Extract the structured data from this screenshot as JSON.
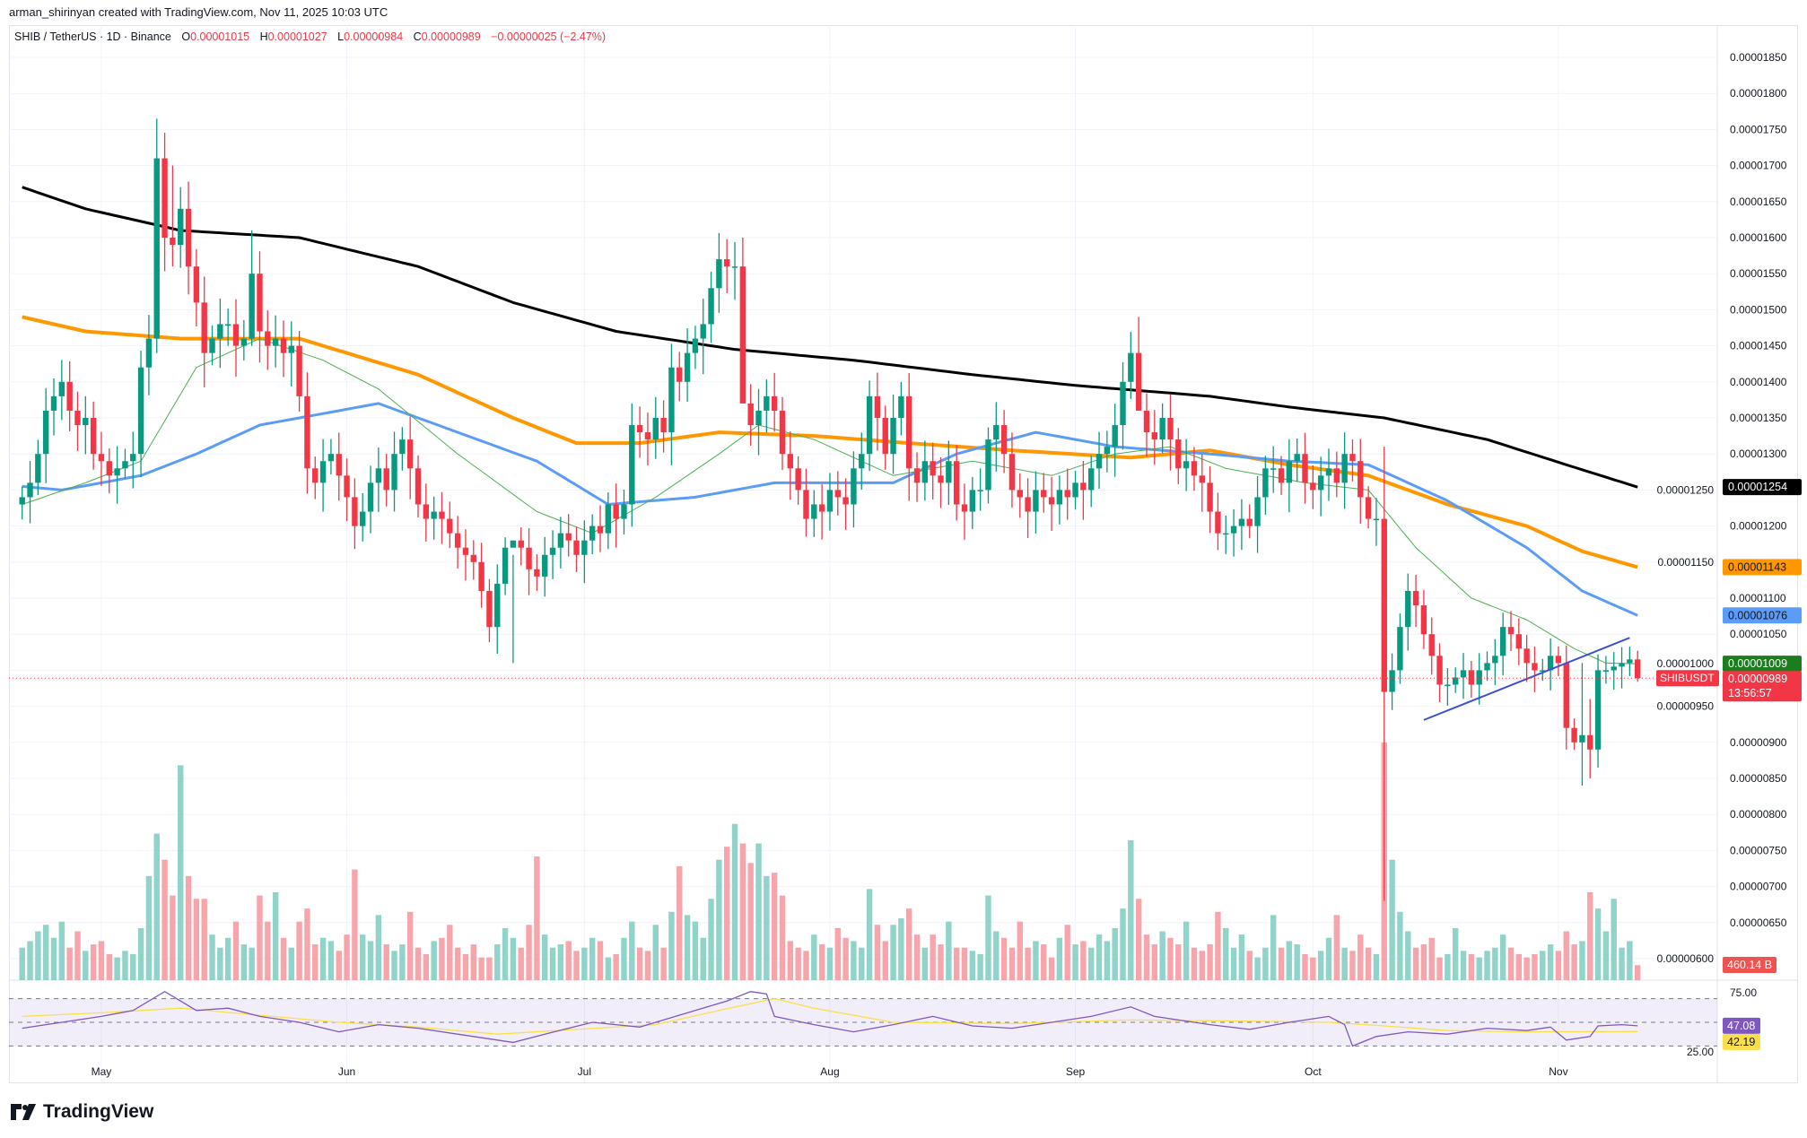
{
  "credit": "arman_shirinyan created with TradingView.com, Nov 11, 2025 10:03 UTC",
  "legend": {
    "symbol": "SHIB / TetherUS · 1D · Binance",
    "open_key": "O",
    "open": "0.00001015",
    "high_key": "H",
    "high": "0.00001027",
    "low_key": "L",
    "low": "0.00000984",
    "close_key": "C",
    "close": "0.00000989",
    "change": "−0.00000025 (−2.47%)"
  },
  "logo_text": "TradingView",
  "colors": {
    "up": "#089981",
    "down": "#f23645",
    "vol_up": "#8fd3c9",
    "vol_down": "#f7a5aa",
    "ma200": "#000000",
    "ma100": "#ff9800",
    "ma50": "#5b9cf6",
    "ma20": "#4caf50",
    "trendline": "#3b4fd1",
    "rsi": "#7e57c2",
    "rsi_ma": "#f9e04b"
  },
  "price_axis": {
    "unit": "1e-8",
    "labels": [
      "0.00001850",
      "0.00001800",
      "0.00001750",
      "0.00001700",
      "0.00001650",
      "0.00001600",
      "0.00001550",
      "0.00001500",
      "0.00001450",
      "0.00001400",
      "0.00001350",
      "0.00001300",
      "0.00001250",
      "0.00001200",
      "0.00001150",
      "0.00001100",
      "0.00001050",
      "0.00001000",
      "0.00000950",
      "0.00000900",
      "0.00000850",
      "0.00000800",
      "0.00000750",
      "0.00000700",
      "0.00000650",
      "0.00000600"
    ],
    "badges": [
      {
        "name": "ma200-badge",
        "text": "0.00001254",
        "value": 1254,
        "bg": "#000000",
        "fg": "#ffffff"
      },
      {
        "name": "ma100-badge",
        "text": "0.00001143",
        "value": 1143,
        "bg": "#ff9800",
        "fg": "#131722"
      },
      {
        "name": "ma50-badge",
        "text": "0.00001076",
        "value": 1076,
        "bg": "#5b9cf6",
        "fg": "#131722"
      },
      {
        "name": "ma20-badge",
        "text": "0.00001009",
        "value": 1009,
        "bg": "#1b7d1e",
        "fg": "#ffffff"
      }
    ],
    "last_price": {
      "symbol_tag": "SHIBUSDT",
      "text": "0.00000989",
      "value": 989,
      "countdown": "13:56:57"
    }
  },
  "volume_badge": "460.14 B",
  "rsi": {
    "labels": [
      "75.00",
      "25.00"
    ],
    "value_badge": "47.08",
    "ma_badge": "42.19",
    "line": [
      [
        0,
        45
      ],
      [
        5,
        50
      ],
      [
        10,
        55
      ],
      [
        14,
        60
      ],
      [
        18,
        76
      ],
      [
        20,
        68
      ],
      [
        22,
        60
      ],
      [
        26,
        62
      ],
      [
        30,
        55
      ],
      [
        35,
        50
      ],
      [
        40,
        42
      ],
      [
        45,
        48
      ],
      [
        50,
        45
      ],
      [
        55,
        40
      ],
      [
        62,
        33
      ],
      [
        66,
        40
      ],
      [
        72,
        50
      ],
      [
        78,
        46
      ],
      [
        85,
        60
      ],
      [
        89,
        68
      ],
      [
        92,
        76
      ],
      [
        94,
        74
      ],
      [
        95,
        55
      ],
      [
        100,
        48
      ],
      [
        105,
        42
      ],
      [
        110,
        48
      ],
      [
        115,
        55
      ],
      [
        120,
        47
      ],
      [
        125,
        45
      ],
      [
        130,
        50
      ],
      [
        135,
        55
      ],
      [
        140,
        63
      ],
      [
        143,
        55
      ],
      [
        150,
        48
      ],
      [
        155,
        44
      ],
      [
        160,
        50
      ],
      [
        165,
        55
      ],
      [
        167,
        48
      ],
      [
        168,
        30
      ],
      [
        171,
        38
      ],
      [
        175,
        42
      ],
      [
        180,
        40
      ],
      [
        185,
        45
      ],
      [
        190,
        43
      ],
      [
        193,
        46
      ],
      [
        195,
        35
      ],
      [
        198,
        38
      ],
      [
        199,
        47
      ],
      [
        202,
        48
      ],
      [
        204,
        47.08
      ]
    ],
    "ma": [
      [
        0,
        55
      ],
      [
        10,
        58
      ],
      [
        20,
        62
      ],
      [
        30,
        56
      ],
      [
        40,
        50
      ],
      [
        50,
        46
      ],
      [
        60,
        40
      ],
      [
        70,
        44
      ],
      [
        80,
        48
      ],
      [
        88,
        60
      ],
      [
        95,
        70
      ],
      [
        100,
        62
      ],
      [
        110,
        50
      ],
      [
        125,
        49
      ],
      [
        140,
        52
      ],
      [
        155,
        51
      ],
      [
        165,
        50
      ],
      [
        172,
        47
      ],
      [
        180,
        43
      ],
      [
        190,
        42
      ],
      [
        204,
        42.19
      ]
    ]
  },
  "chart_data": {
    "type": "candlestick",
    "title": "SHIB / TetherUS · 1D · Binance",
    "price_unit": "1e-8 USDT",
    "month_ticks": [
      {
        "label": "May",
        "index": 10
      },
      {
        "label": "Jun",
        "index": 41
      },
      {
        "label": "Jul",
        "index": 71
      },
      {
        "label": "Aug",
        "index": 102
      },
      {
        "label": "Sep",
        "index": 133
      },
      {
        "label": "Oct",
        "index": 163
      },
      {
        "label": "Nov",
        "index": 194
      }
    ],
    "ylim": [
      560,
      1870
    ],
    "first_open": 1230,
    "closes": [
      1240,
      1260,
      1300,
      1360,
      1380,
      1400,
      1360,
      1340,
      1350,
      1300,
      1290,
      1270,
      1280,
      1290,
      1300,
      1420,
      1460,
      1710,
      1600,
      1590,
      1640,
      1560,
      1510,
      1440,
      1460,
      1480,
      1480,
      1450,
      1460,
      1550,
      1470,
      1450,
      1460,
      1440,
      1450,
      1380,
      1280,
      1260,
      1290,
      1300,
      1270,
      1240,
      1200,
      1220,
      1260,
      1280,
      1250,
      1300,
      1320,
      1280,
      1230,
      1210,
      1220,
      1210,
      1190,
      1170,
      1160,
      1150,
      1110,
      1060,
      1120,
      1170,
      1180,
      1170,
      1140,
      1130,
      1160,
      1170,
      1190,
      1180,
      1160,
      1180,
      1200,
      1190,
      1230,
      1210,
      1230,
      1340,
      1330,
      1320,
      1350,
      1330,
      1420,
      1400,
      1440,
      1460,
      1480,
      1530,
      1570,
      1560,
      1560,
      1370,
      1340,
      1360,
      1380,
      1360,
      1300,
      1280,
      1250,
      1210,
      1230,
      1220,
      1250,
      1240,
      1230,
      1280,
      1300,
      1380,
      1350,
      1300,
      1350,
      1380,
      1280,
      1260,
      1290,
      1270,
      1260,
      1290,
      1230,
      1220,
      1250,
      1250,
      1320,
      1340,
      1300,
      1250,
      1240,
      1220,
      1250,
      1240,
      1230,
      1250,
      1240,
      1260,
      1250,
      1280,
      1300,
      1310,
      1340,
      1400,
      1440,
      1360,
      1330,
      1320,
      1350,
      1320,
      1280,
      1290,
      1270,
      1260,
      1220,
      1190,
      1190,
      1200,
      1210,
      1200,
      1240,
      1280,
      1280,
      1260,
      1290,
      1300,
      1260,
      1250,
      1270,
      1280,
      1260,
      1300,
      1290,
      1240,
      1210,
      1210,
      970,
      1000,
      1060,
      1110,
      1090,
      1050,
      1020,
      980,
      980,
      990,
      1000,
      980,
      1000,
      1010,
      1020,
      1060,
      1050,
      1030,
      1010,
      1000,
      1000,
      1020,
      1010,
      920,
      900,
      910,
      890,
      1000,
      1000,
      1005,
      1010,
      1015,
      989
    ],
    "wick_overrides": [
      [
        17,
        1765,
        1440
      ],
      [
        19,
        1700,
        1560
      ],
      [
        29,
        1610,
        1450
      ],
      [
        62,
        1160,
        1010
      ],
      [
        91,
        1600,
        1540
      ],
      [
        141,
        1490,
        1400
      ],
      [
        172,
        1310,
        680
      ],
      [
        204,
        1027,
        984
      ],
      [
        197,
        1010,
        840
      ],
      [
        198,
        960,
        850
      ]
    ],
    "volume_unit": "B",
    "volumes": [
      1000,
      1200,
      1500,
      1700,
      1300,
      1800,
      1000,
      1500,
      900,
      1100,
      1200,
      800,
      700,
      900,
      800,
      1600,
      3200,
      4500,
      3700,
      2600,
      6600,
      3200,
      2500,
      2500,
      1400,
      1000,
      1300,
      1800,
      1100,
      1000,
      2600,
      1800,
      2700,
      1300,
      1000,
      1800,
      2200,
      1100,
      1300,
      1200,
      900,
      1400,
      3400,
      1400,
      1200,
      2000,
      1100,
      900,
      1100,
      2100,
      1000,
      800,
      1200,
      1300,
      1700,
      1000,
      800,
      1100,
      700,
      700,
      1100,
      1600,
      1300,
      1000,
      1700,
      3800,
      1400,
      1000,
      1100,
      1200,
      900,
      1000,
      1300,
      1200,
      700,
      800,
      1300,
      1800,
      1000,
      900,
      1700,
      1000,
      2100,
      3500,
      2000,
      1800,
      1300,
      2500,
      3700,
      4100,
      4800,
      4200,
      3600,
      4200,
      3200,
      3300,
      2600,
      1200,
      1000,
      900,
      1400,
      1100,
      1000,
      1600,
      1300,
      1200,
      1000,
      2800,
      1700,
      1200,
      1700,
      1900,
      2200,
      1400,
      1000,
      1400,
      1100,
      1800,
      1000,
      1000,
      900,
      800,
      2600,
      1500,
      1300,
      1000,
      1800,
      1000,
      1200,
      1100,
      700,
      1300,
      1700,
      1100,
      1200,
      1000,
      1400,
      1200,
      1600,
      2200,
      4300,
      2500,
      1400,
      1100,
      1500,
      1300,
      1100,
      1800,
      1000,
      900,
      1100,
      2100,
      1600,
      1000,
      1400,
      900,
      700,
      1000,
      2000,
      1000,
      1200,
      1100,
      800,
      700,
      900,
      1300,
      2000,
      1000,
      900,
      1400,
      1000,
      800,
      7300,
      3700,
      2100,
      1500,
      1000,
      1100,
      1300,
      700,
      800,
      1600,
      900,
      800,
      700,
      900,
      1000,
      1400,
      1000,
      800,
      700,
      800,
      900,
      1100,
      900,
      1500,
      1100,
      1200,
      2700,
      2200,
      1500,
      2500,
      1000,
      1200,
      460.14
    ],
    "moving_averages": [
      {
        "name": "MA200",
        "color": "#000000",
        "points": [
          [
            0,
            1670
          ],
          [
            8,
            1640
          ],
          [
            20,
            1610
          ],
          [
            35,
            1600
          ],
          [
            50,
            1560
          ],
          [
            62,
            1510
          ],
          [
            75,
            1470
          ],
          [
            90,
            1445
          ],
          [
            105,
            1430
          ],
          [
            120,
            1410
          ],
          [
            133,
            1395
          ],
          [
            150,
            1380
          ],
          [
            160,
            1365
          ],
          [
            172,
            1350
          ],
          [
            185,
            1320
          ],
          [
            195,
            1285
          ],
          [
            204,
            1254
          ]
        ]
      },
      {
        "name": "MA100",
        "color": "#ff9800",
        "points": [
          [
            0,
            1490
          ],
          [
            8,
            1470
          ],
          [
            20,
            1460
          ],
          [
            35,
            1460
          ],
          [
            50,
            1410
          ],
          [
            62,
            1350
          ],
          [
            70,
            1315
          ],
          [
            78,
            1315
          ],
          [
            88,
            1330
          ],
          [
            100,
            1325
          ],
          [
            112,
            1315
          ],
          [
            125,
            1305
          ],
          [
            140,
            1295
          ],
          [
            150,
            1305
          ],
          [
            160,
            1285
          ],
          [
            170,
            1270
          ],
          [
            180,
            1230
          ],
          [
            190,
            1200
          ],
          [
            197,
            1165
          ],
          [
            204,
            1143
          ]
        ]
      },
      {
        "name": "MA50",
        "color": "#5b9cf6",
        "points": [
          [
            0,
            1255
          ],
          [
            5,
            1250
          ],
          [
            15,
            1270
          ],
          [
            22,
            1300
          ],
          [
            30,
            1340
          ],
          [
            45,
            1370
          ],
          [
            55,
            1330
          ],
          [
            65,
            1290
          ],
          [
            74,
            1230
          ],
          [
            85,
            1240
          ],
          [
            95,
            1260
          ],
          [
            110,
            1260
          ],
          [
            118,
            1300
          ],
          [
            128,
            1330
          ],
          [
            138,
            1310
          ],
          [
            150,
            1300
          ],
          [
            160,
            1290
          ],
          [
            170,
            1285
          ],
          [
            180,
            1235
          ],
          [
            190,
            1170
          ],
          [
            197,
            1110
          ],
          [
            204,
            1076
          ]
        ]
      },
      {
        "name": "MA20",
        "color": "#4caf50",
        "points": [
          [
            0,
            1230
          ],
          [
            8,
            1260
          ],
          [
            15,
            1290
          ],
          [
            22,
            1420
          ],
          [
            30,
            1460
          ],
          [
            38,
            1430
          ],
          [
            45,
            1390
          ],
          [
            55,
            1300
          ],
          [
            65,
            1220
          ],
          [
            72,
            1190
          ],
          [
            80,
            1240
          ],
          [
            88,
            1300
          ],
          [
            93,
            1340
          ],
          [
            100,
            1320
          ],
          [
            110,
            1270
          ],
          [
            120,
            1290
          ],
          [
            130,
            1270
          ],
          [
            138,
            1300
          ],
          [
            145,
            1310
          ],
          [
            152,
            1280
          ],
          [
            162,
            1260
          ],
          [
            170,
            1250
          ],
          [
            176,
            1170
          ],
          [
            183,
            1100
          ],
          [
            190,
            1070
          ],
          [
            196,
            1030
          ],
          [
            200,
            1010
          ],
          [
            204,
            1009
          ]
        ]
      }
    ],
    "trendline": {
      "from": [
        177,
        931
      ],
      "to": [
        203,
        1045
      ]
    }
  }
}
